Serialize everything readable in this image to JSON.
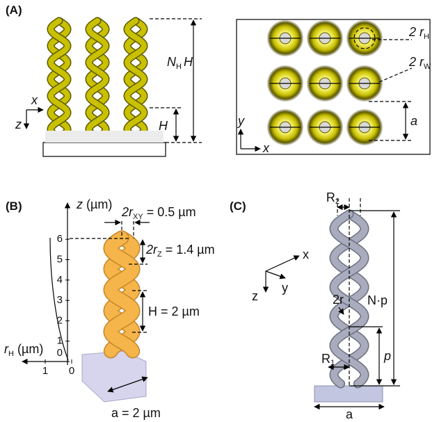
{
  "panel_a": {
    "label": "(A)",
    "side": {
      "nh_h": {
        "n": "N",
        "sub": "H",
        "h": "H"
      },
      "h": "H",
      "x": "x",
      "z": "z"
    },
    "top": {
      "two_rh": {
        "pre": "2 r",
        "sub": "H"
      },
      "two_rw": {
        "pre": "2 r",
        "sub": "W"
      },
      "a": "a",
      "y": "y",
      "x": "x"
    }
  },
  "panel_b": {
    "label": "(B)",
    "z_axis": {
      "var": "z",
      "unit": " (µm)"
    },
    "z_ticks": [
      0,
      1,
      2,
      3,
      4,
      5,
      6
    ],
    "rh_axis": {
      "var": "r",
      "sub": "H",
      "unit": " (µm)"
    },
    "rh_ticks": [
      1,
      0
    ],
    "two_rxy": {
      "pre": "2r",
      "sub": "XY",
      "post": " = 0.5 µm"
    },
    "two_rz": {
      "pre": "2r",
      "sub": "Z",
      "post": " = 1.4 µm"
    },
    "h": "H = 2 µm",
    "a": "a = 2 µm"
  },
  "panel_c": {
    "label": "(C)",
    "r2": {
      "pre": "R",
      "sub": "2"
    },
    "x": "x",
    "y": "y",
    "z": "z",
    "np": "N·p",
    "two_r": "2r",
    "p": "p",
    "r1": {
      "pre": "R",
      "sub": "1"
    },
    "a": "a"
  }
}
